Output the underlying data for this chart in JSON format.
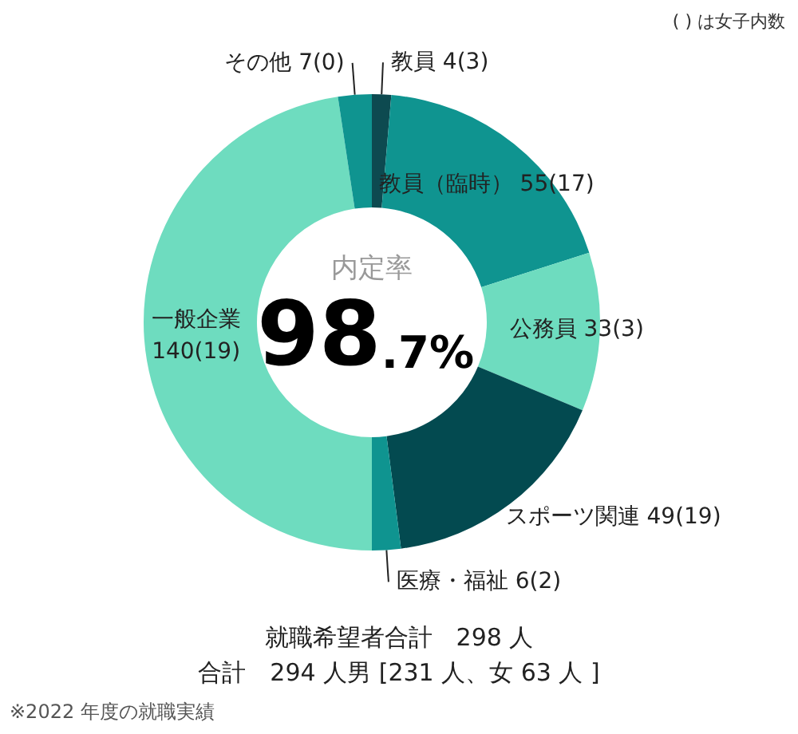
{
  "chart_data": {
    "type": "donut",
    "categories": [
      "教員",
      "教員（臨時）",
      "公務員",
      "スポーツ関連",
      "医療・福祉",
      "一般企業",
      "その他"
    ],
    "values": [
      4,
      55,
      33,
      49,
      6,
      140,
      7
    ],
    "value_labels": [
      "4(3)",
      "55(17)",
      "33(3)",
      "49(19)",
      "6(2)",
      "140(19)",
      "7(0)"
    ],
    "colors": [
      "#0d4a50",
      "#0f9490",
      "#6edcbf",
      "#034a50",
      "#0f9490",
      "#6edcbf",
      "#0f9490"
    ],
    "legend": false,
    "annotations": [
      "( ) は女子内数",
      "内定率",
      "98.7%",
      "就職希望者合計　298 人",
      "合計　294 人男 [231 人、女 63 人 ]",
      "※2022 年度の就職実績"
    ]
  }
}
